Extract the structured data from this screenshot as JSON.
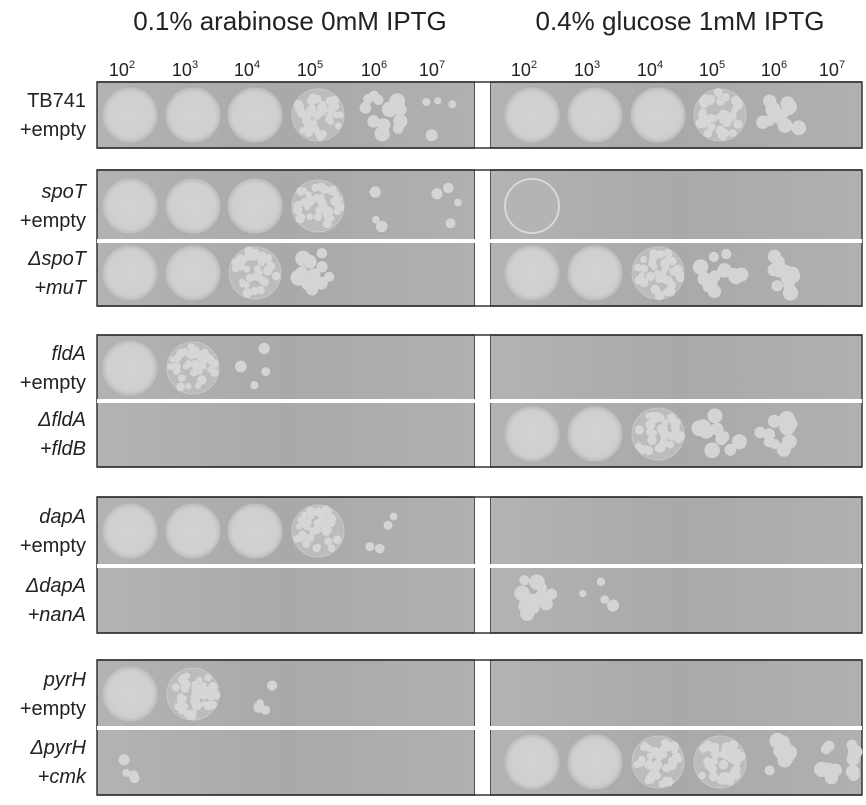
{
  "header": {
    "left_condition": "0.1% arabinose 0mM IPTG",
    "right_condition": "0.4% glucose 1mM IPTG"
  },
  "dilutions": [
    {
      "base": "10",
      "exponent": "2"
    },
    {
      "base": "10",
      "exponent": "3"
    },
    {
      "base": "10",
      "exponent": "4"
    },
    {
      "base": "10",
      "exponent": "5"
    },
    {
      "base": "10",
      "exponent": "6"
    },
    {
      "base": "10",
      "exponent": "7"
    }
  ],
  "strains": [
    {
      "line1": "TB741",
      "line2": "+empty"
    },
    {
      "line1": "spoT",
      "line2": "+empty"
    },
    {
      "line1": "ΔspoT",
      "line2": "+muT"
    },
    {
      "line1": "fldA",
      "line2": "+empty"
    },
    {
      "line1": "ΔfldA",
      "line2": "+fldB"
    },
    {
      "line1": "dapA",
      "line2": "+empty"
    },
    {
      "line1": "ΔdapA",
      "line2": "+nanA"
    },
    {
      "line1": "pyrH",
      "line2": "+empty"
    },
    {
      "line1": "ΔpyrH",
      "line2": "+cmk"
    }
  ]
}
